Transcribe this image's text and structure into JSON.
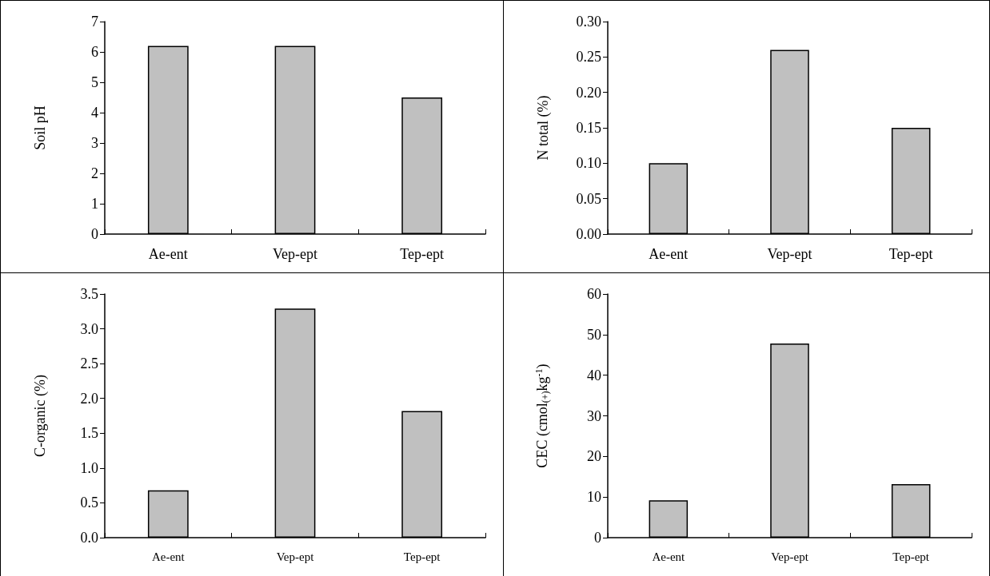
{
  "chart_data": [
    {
      "type": "bar",
      "ylabel": "Soil pH",
      "categories": [
        "Ae-ent",
        "Vep-ept",
        "Tep-ept"
      ],
      "values": [
        6.2,
        6.2,
        4.5
      ],
      "color": "#c0c0c0",
      "ylim": [
        0,
        7
      ],
      "yticks": [
        0,
        1,
        2,
        3,
        4,
        5,
        6,
        7
      ]
    },
    {
      "type": "bar",
      "ylabel": "N total (%)",
      "categories": [
        "Ae-ent",
        "Vep-ept",
        "Tep-ept"
      ],
      "values": [
        0.1,
        0.26,
        0.15
      ],
      "color": "#c0c0c0",
      "ylim": [
        0,
        0.3
      ],
      "yticks": [
        {
          "value": 0,
          "label": "0.00"
        },
        0.05,
        {
          "value": 0.1,
          "label": "0.10"
        },
        0.15,
        {
          "value": 0.2,
          "label": "0.20"
        },
        0.25,
        {
          "value": 0.3,
          "label": "0.30"
        }
      ]
    },
    {
      "type": "bar",
      "ylabel": "C-organic (%)",
      "categories": [
        "Ae-ent",
        "Vep-ept",
        "Tep-ept"
      ],
      "values": [
        0.68,
        3.29,
        1.82
      ],
      "color": "#c0c0c0",
      "ylim": [
        0,
        3.5
      ],
      "yticks": [
        {
          "value": 0,
          "label": "0.0"
        },
        0.5,
        {
          "value": 1,
          "label": "1.0"
        },
        1.5,
        {
          "value": 2,
          "label": "2.0"
        },
        2.5,
        {
          "value": 3,
          "label": "3.0"
        },
        3.5
      ]
    },
    {
      "type": "bar",
      "ylabel": "CEC (cmol$_{(+)}$kg$^{-1}$)",
      "categories": [
        "Ae-ent",
        "Vep-ept",
        "Tep-ept"
      ],
      "values": [
        9.2,
        47.8,
        13.2
      ],
      "color": "#c0c0c0",
      "ylim": [
        0,
        60
      ],
      "yticks": [
        0,
        10,
        20,
        30,
        40,
        50,
        60
      ]
    }
  ]
}
